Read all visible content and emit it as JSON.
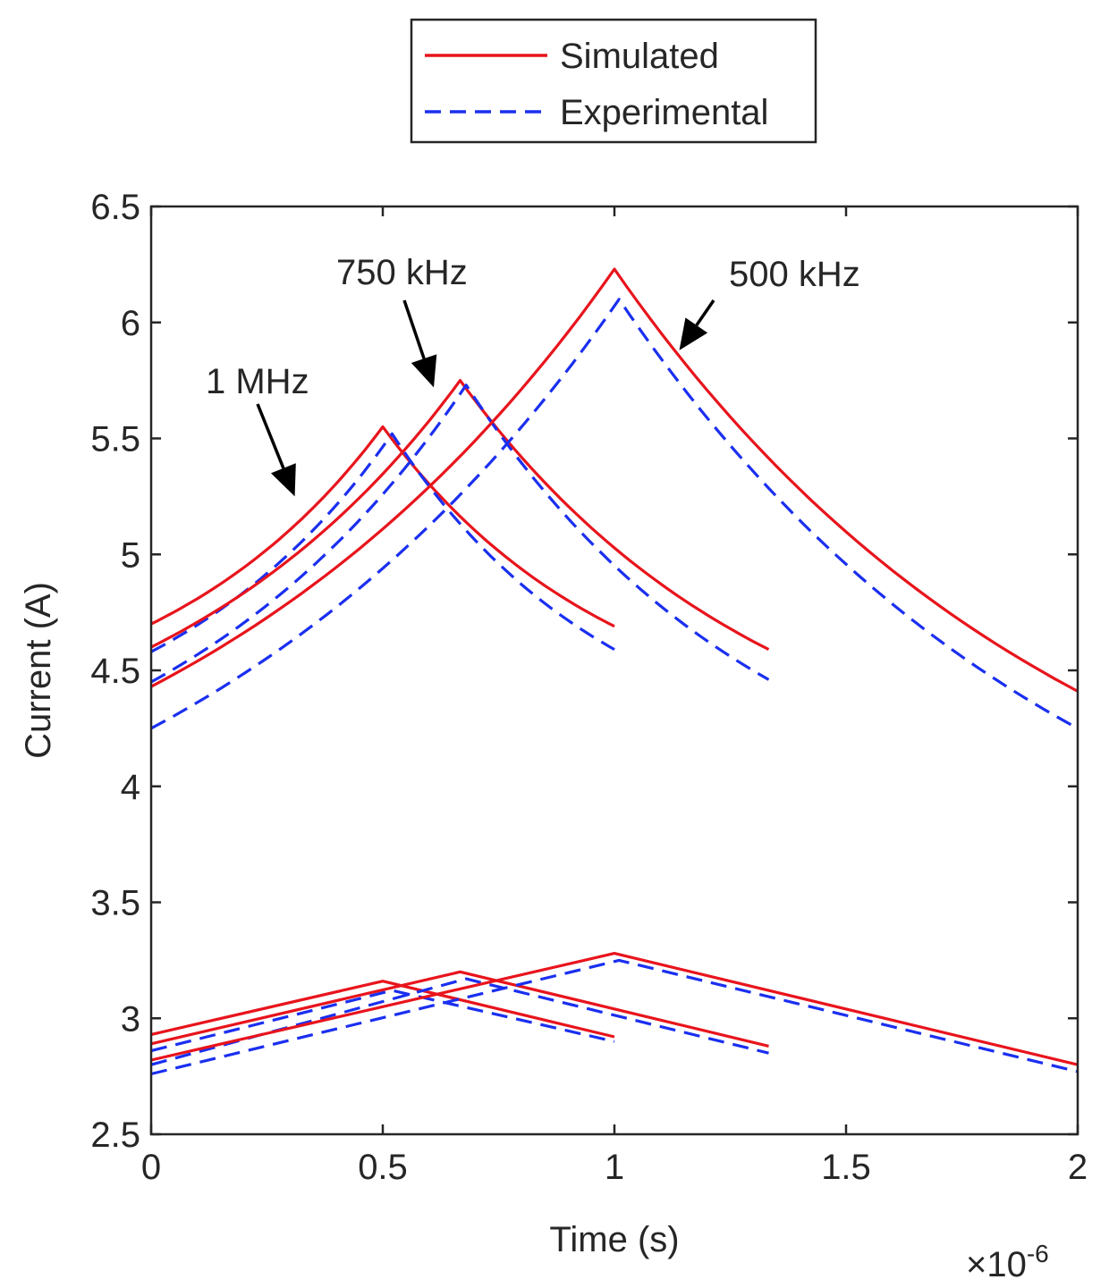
{
  "chart_data": {
    "type": "line",
    "title": "",
    "xlabel": "Time (s)",
    "ylabel": "Current (A)",
    "x_exponent_label": "×10",
    "x_exponent_power": "-6",
    "xlim": [
      0,
      2
    ],
    "ylim": [
      2.5,
      6.5
    ],
    "xticks": [
      0,
      0.5,
      1,
      1.5,
      2
    ],
    "xtick_labels": [
      "0",
      "0.5",
      "1",
      "1.5",
      "2"
    ],
    "yticks": [
      2.5,
      3,
      3.5,
      4,
      4.5,
      5,
      5.5,
      6,
      6.5
    ],
    "ytick_labels": [
      "2.5",
      "3",
      "3.5",
      "4",
      "4.5",
      "5",
      "5.5",
      "6",
      "6.5"
    ],
    "grid": false,
    "legend": {
      "position": "top-center-outside",
      "entries": [
        {
          "label": "Simulated",
          "style": "solid",
          "color": "#e8141c"
        },
        {
          "label": "Experimental",
          "style": "dashed",
          "color": "#1a2ff0"
        }
      ]
    },
    "annotations": [
      {
        "text": "1 MHz",
        "arrow_to": [
          0.31,
          5.25
        ]
      },
      {
        "text": "750 kHz",
        "arrow_to": [
          0.61,
          5.72
        ]
      },
      {
        "text": "500 kHz",
        "arrow_to": [
          1.14,
          5.88
        ]
      }
    ],
    "series": [
      {
        "name": "Simulated",
        "group": "upper",
        "freq": "1 MHz",
        "shape": "exp",
        "x": [
          0,
          0.5,
          1.0
        ],
        "y": [
          4.7,
          5.55,
          4.69
        ]
      },
      {
        "name": "Experimental",
        "group": "upper",
        "freq": "1 MHz",
        "shape": "exp",
        "x": [
          0,
          0.52,
          1.0
        ],
        "y": [
          4.58,
          5.52,
          4.59
        ]
      },
      {
        "name": "Simulated",
        "group": "upper",
        "freq": "750 kHz",
        "shape": "exp",
        "x": [
          0,
          0.667,
          1.333
        ],
        "y": [
          4.6,
          5.75,
          4.59
        ]
      },
      {
        "name": "Experimental",
        "group": "upper",
        "freq": "750 kHz",
        "shape": "exp",
        "x": [
          0,
          0.68,
          1.333
        ],
        "y": [
          4.45,
          5.73,
          4.46
        ]
      },
      {
        "name": "Simulated",
        "group": "upper",
        "freq": "500 kHz",
        "shape": "exp",
        "x": [
          0,
          1.0,
          2.0
        ],
        "y": [
          4.43,
          6.23,
          4.41
        ]
      },
      {
        "name": "Experimental",
        "group": "upper",
        "freq": "500 kHz",
        "shape": "exp",
        "x": [
          0,
          1.01,
          2.0
        ],
        "y": [
          4.25,
          6.1,
          4.25
        ]
      },
      {
        "name": "Simulated",
        "group": "lower",
        "freq": "1 MHz",
        "shape": "linear",
        "x": [
          0,
          0.5,
          1.0
        ],
        "y": [
          2.93,
          3.16,
          2.92
        ]
      },
      {
        "name": "Experimental",
        "group": "lower",
        "freq": "1 MHz",
        "shape": "linear",
        "x": [
          0,
          0.52,
          1.0
        ],
        "y": [
          2.86,
          3.12,
          2.9
        ]
      },
      {
        "name": "Simulated",
        "group": "lower",
        "freq": "750 kHz",
        "shape": "linear",
        "x": [
          0,
          0.667,
          1.333
        ],
        "y": [
          2.89,
          3.2,
          2.88
        ]
      },
      {
        "name": "Experimental",
        "group": "lower",
        "freq": "750 kHz",
        "shape": "linear",
        "x": [
          0,
          0.68,
          1.333
        ],
        "y": [
          2.8,
          3.17,
          2.85
        ]
      },
      {
        "name": "Simulated",
        "group": "lower",
        "freq": "500 kHz",
        "shape": "linear",
        "x": [
          0,
          1.0,
          2.0
        ],
        "y": [
          2.82,
          3.28,
          2.8
        ]
      },
      {
        "name": "Experimental",
        "group": "lower",
        "freq": "500 kHz",
        "shape": "linear",
        "x": [
          0,
          1.01,
          2.0
        ],
        "y": [
          2.76,
          3.25,
          2.77
        ]
      }
    ]
  }
}
